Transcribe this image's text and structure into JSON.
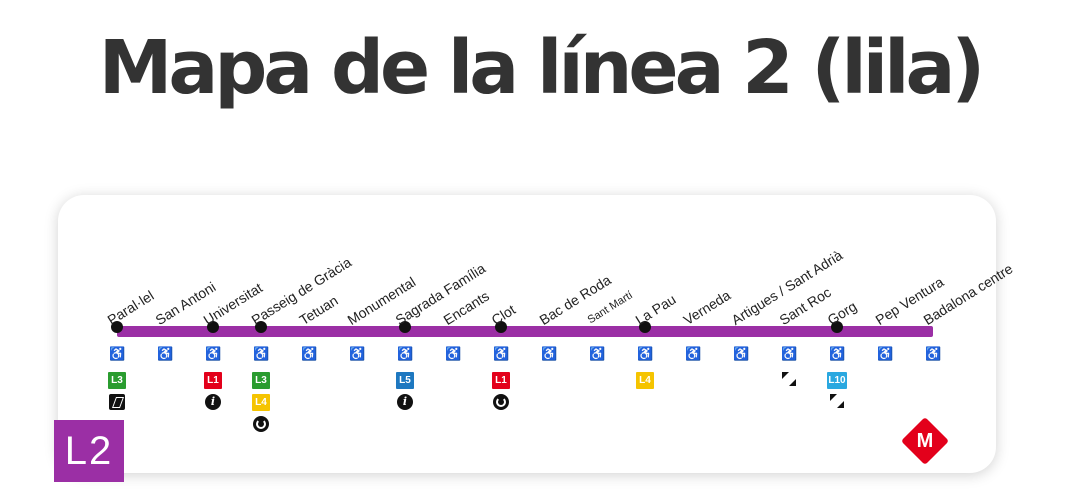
{
  "title": "Mapa de la línea 2 (lila)",
  "line": {
    "badge": "L2",
    "color": "#9b2fa5"
  },
  "colors": {
    "L1": "#e3001b",
    "L3": "#2a9c2f",
    "L4": "#f5c400",
    "L5": "#1e78c0",
    "L10": "#2aa8e0"
  },
  "metro_logo": "M",
  "accessibility_icon": "wheelchair-icon",
  "stations": [
    {
      "name": "Paral·lel",
      "dot": true,
      "connections": [
        "L3",
        "funicular-icon"
      ]
    },
    {
      "name": "San Antoni",
      "dot": false,
      "connections": []
    },
    {
      "name": "Universitat",
      "dot": true,
      "connections": [
        "L1",
        "info-icon"
      ]
    },
    {
      "name": "Passeig de Gràcia",
      "dot": true,
      "connections": [
        "L3",
        "L4",
        "regional-train-icon"
      ]
    },
    {
      "name": "Tetuan",
      "dot": false,
      "connections": []
    },
    {
      "name": "Monumental",
      "dot": false,
      "connections": []
    },
    {
      "name": "Sagrada Família",
      "dot": true,
      "connections": [
        "L5",
        "info-icon"
      ]
    },
    {
      "name": "Encants",
      "dot": false,
      "connections": []
    },
    {
      "name": "Clot",
      "dot": true,
      "connections": [
        "L1",
        "regional-train-icon"
      ]
    },
    {
      "name": "Bac de Roda",
      "dot": false,
      "connections": []
    },
    {
      "name": "Sant Martí",
      "dot": false,
      "connections": []
    },
    {
      "name": "La Pau",
      "dot": true,
      "connections": [
        "L4"
      ]
    },
    {
      "name": "Verneda",
      "dot": false,
      "connections": []
    },
    {
      "name": "Artigues / Sant Adrià",
      "dot": false,
      "connections": []
    },
    {
      "name": "Sant Roc",
      "dot": false,
      "connections": [
        "tram-icon"
      ]
    },
    {
      "name": "Gorg",
      "dot": true,
      "connections": [
        "L10",
        "tram-icon"
      ]
    },
    {
      "name": "Pep Ventura",
      "dot": false,
      "connections": []
    },
    {
      "name": "Badalona centre",
      "dot": false,
      "connections": []
    }
  ]
}
